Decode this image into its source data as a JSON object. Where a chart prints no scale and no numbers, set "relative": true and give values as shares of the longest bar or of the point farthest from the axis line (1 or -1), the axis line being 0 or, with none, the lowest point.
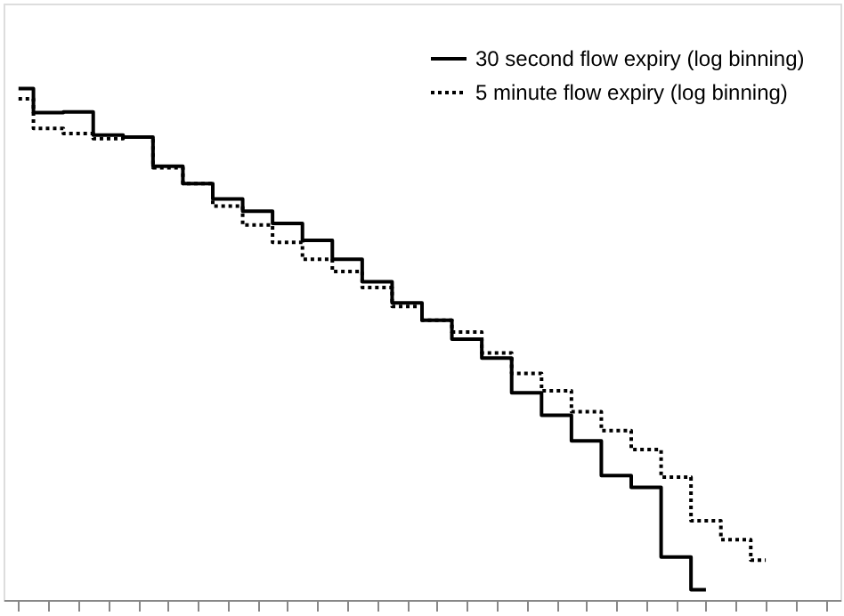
{
  "chart_data": {
    "type": "step",
    "relative": true,
    "tick_labels": false,
    "legend": "top right",
    "grid": false,
    "marker": "none",
    "categories": [
      null,
      null,
      null,
      null,
      null,
      null,
      null,
      null,
      null,
      null,
      null,
      null,
      null,
      null,
      null,
      null,
      null,
      null,
      null,
      null,
      null,
      null,
      null,
      null,
      null,
      null,
      null,
      null
    ],
    "series": [
      {
        "name": "30 second flow expiry (log binning)",
        "color": "#000000",
        "line_style": "solid",
        "values": [
          1.0,
          0.953,
          0.954,
          0.909,
          0.905,
          0.848,
          0.814,
          0.784,
          0.76,
          0.736,
          0.703,
          0.666,
          0.622,
          0.581,
          0.547,
          0.51,
          0.473,
          0.405,
          0.361,
          0.311,
          0.243,
          0.22,
          0.084,
          0.02,
          null,
          null,
          null,
          null
        ]
      },
      {
        "name": "5 minute flow expiry (log binning)",
        "color": "#000000",
        "line_style": "dotted",
        "values": [
          0.98,
          0.922,
          0.912,
          0.902,
          0.905,
          0.845,
          0.814,
          0.77,
          0.733,
          0.699,
          0.666,
          0.642,
          0.611,
          0.574,
          0.547,
          0.524,
          0.483,
          0.443,
          0.409,
          0.368,
          0.331,
          0.294,
          0.24,
          0.155,
          0.118,
          0.078,
          null,
          null
        ]
      }
    ]
  }
}
